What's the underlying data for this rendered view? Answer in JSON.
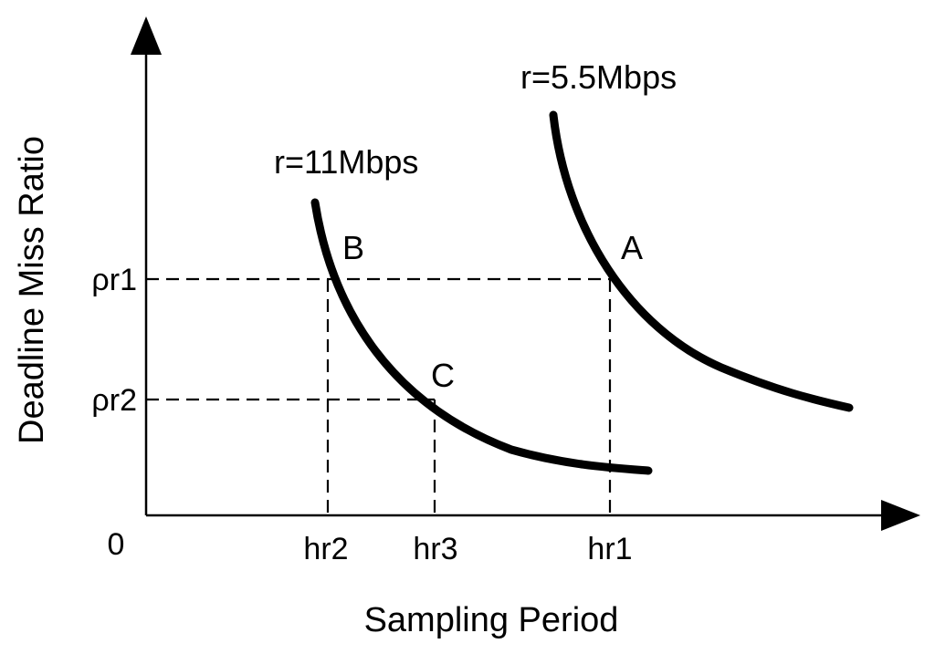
{
  "chart_data": {
    "type": "line",
    "title": "",
    "xlabel": "Sampling Period",
    "ylabel": "Deadline Miss Ratio",
    "origin_label": "0",
    "x_ticks": [
      "hr2",
      "hr3",
      "hr1"
    ],
    "y_ticks": [
      "ρr1",
      "ρr2"
    ],
    "grid": false,
    "series": [
      {
        "name": "r=11Mbps"
      },
      {
        "name": "r=5.5Mbps"
      }
    ],
    "points": [
      {
        "label": "A",
        "series": "r=5.5Mbps",
        "x": "hr1",
        "y": "ρr1"
      },
      {
        "label": "B",
        "series": "r=11Mbps",
        "x": "hr2",
        "y": "ρr1"
      },
      {
        "label": "C",
        "series": "r=11Mbps",
        "x": "hr3",
        "y": "ρr2"
      }
    ]
  }
}
